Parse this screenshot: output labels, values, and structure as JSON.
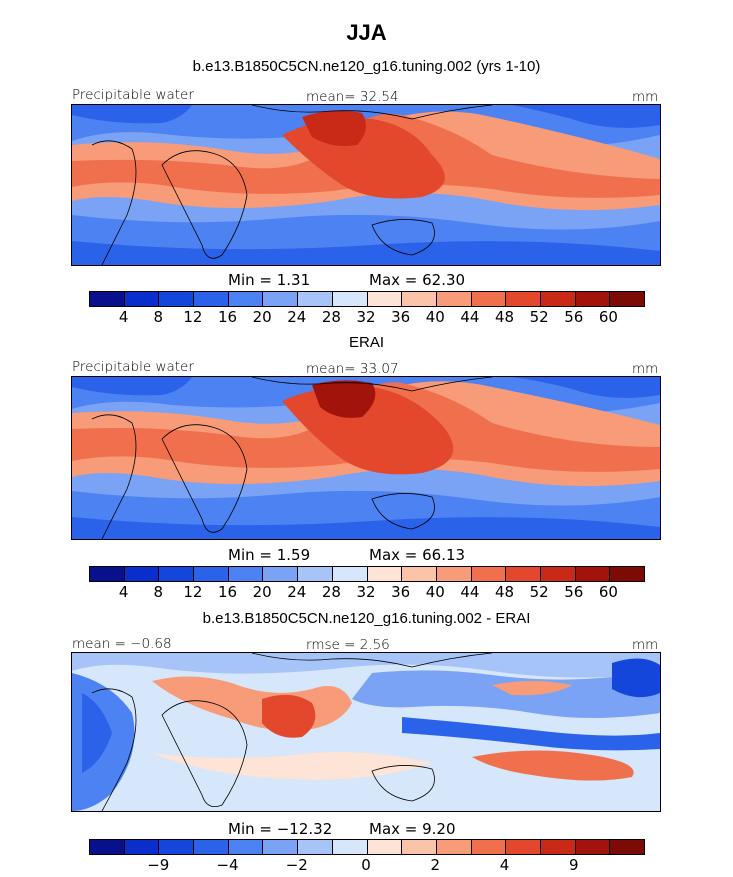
{
  "figure_title": "JJA",
  "chart_data": [
    {
      "type": "heatmap",
      "title": "b.e13.B1850C5CN.ne120_g16.tuning.002 (yrs 1-10)",
      "left_label": "Precipitable water",
      "center_label": "mean=  32.54",
      "right_label": "mm",
      "min_label": "Min =    1.31",
      "max_label": "Max =   62.30",
      "colorbar_levels": [
        "4",
        "8",
        "12",
        "16",
        "20",
        "24",
        "28",
        "32",
        "36",
        "40",
        "44",
        "48",
        "52",
        "56",
        "60"
      ],
      "colorbar_colors": [
        "#08108c",
        "#0a2ecb",
        "#1546dc",
        "#2a63ea",
        "#4d82f2",
        "#7aa3f5",
        "#a6c4f7",
        "#d6e6fb",
        "#fde4d6",
        "#fbc4a8",
        "#f79b78",
        "#f0704e",
        "#e3482c",
        "#c92a17",
        "#a2140b",
        "#7c0a05"
      ]
    },
    {
      "type": "heatmap",
      "title": "ERAI",
      "left_label": "Precipitable water",
      "center_label": "mean=  33.07",
      "right_label": "mm",
      "min_label": "Min =    1.59",
      "max_label": "Max =   66.13",
      "colorbar_levels": [
        "4",
        "8",
        "12",
        "16",
        "20",
        "24",
        "28",
        "32",
        "36",
        "40",
        "44",
        "48",
        "52",
        "56",
        "60"
      ],
      "colorbar_colors": [
        "#08108c",
        "#0a2ecb",
        "#1546dc",
        "#2a63ea",
        "#4d82f2",
        "#7aa3f5",
        "#a6c4f7",
        "#d6e6fb",
        "#fde4d6",
        "#fbc4a8",
        "#f79b78",
        "#f0704e",
        "#e3482c",
        "#c92a17",
        "#a2140b",
        "#7c0a05"
      ]
    },
    {
      "type": "heatmap",
      "title": "b.e13.B1850C5CN.ne120_g16.tuning.002 - ERAI",
      "left_label": "mean =  −0.68",
      "center_label": "rmse =    2.56",
      "right_label": "mm",
      "min_label": "Min = −12.32",
      "max_label": "Max =    9.20",
      "colorbar_levels": [
        "−9",
        "−4",
        "−2",
        "0",
        "2",
        "4",
        "9"
      ],
      "colorbar_colors": [
        "#08108c",
        "#0a2ecb",
        "#1546dc",
        "#2a63ea",
        "#4d82f2",
        "#7aa3f5",
        "#a6c4f7",
        "#d6e6fb",
        "#fde4d6",
        "#fbc4a8",
        "#f79b78",
        "#f0704e",
        "#e3482c",
        "#c92a17",
        "#a2140b",
        "#7c0a05"
      ]
    }
  ]
}
